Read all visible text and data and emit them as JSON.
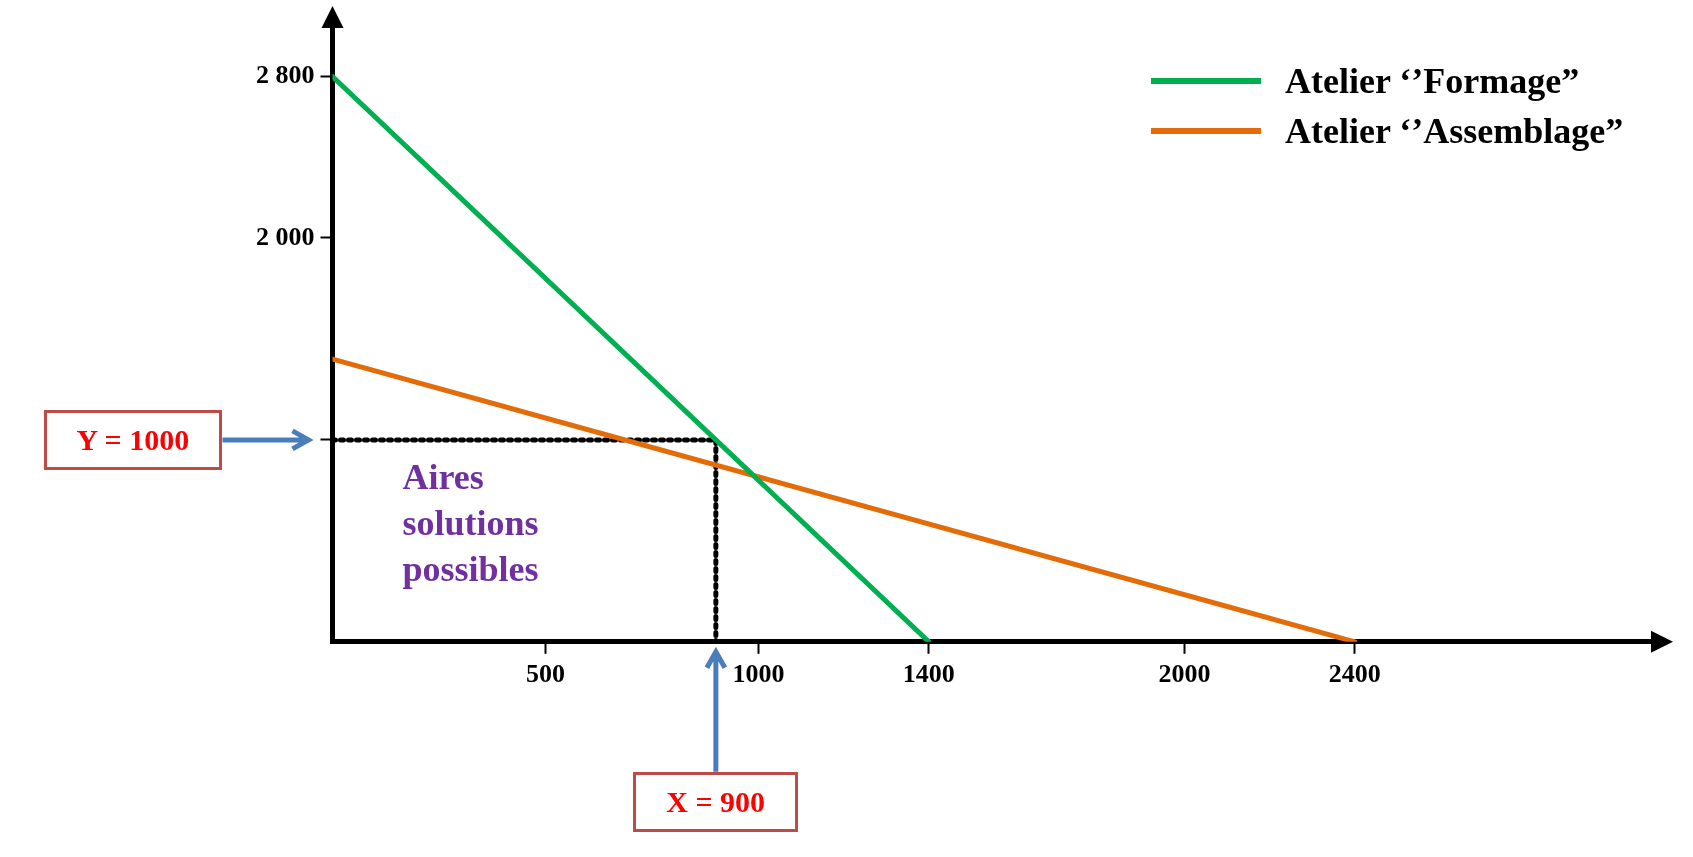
{
  "chart_data": {
    "type": "line",
    "series": [
      {
        "name": "Atelier ‘’Formage”",
        "color": "#00b050",
        "x": [
          0,
          1400
        ],
        "values": [
          2800,
          0
        ]
      },
      {
        "name": "Atelier ‘’Assemblage”",
        "color": "#e36c09",
        "x": [
          0,
          2400
        ],
        "values": [
          1400,
          0
        ]
      },
      {
        "color": "#000000",
        "x": [
          0,
          900,
          900
        ],
        "values": [
          1000,
          1000,
          0
        ],
        "line_style": "dotted"
      }
    ],
    "xlim": [
      0,
      3100
    ],
    "ylim": [
      0,
      3050
    ],
    "xticks": [
      500,
      1000,
      1400,
      2000,
      2400
    ],
    "yticks": [
      {
        "value": 1000,
        "label": null
      },
      {
        "value": 2000,
        "label": "2 000"
      },
      {
        "value": 2800,
        "label": "2 800"
      }
    ],
    "annotations": [
      "Y = 1000",
      "X = 900",
      "Aires solutions possibles"
    ],
    "grid": false,
    "legend": "top right",
    "marker": "none",
    "line_style": "solid"
  }
}
